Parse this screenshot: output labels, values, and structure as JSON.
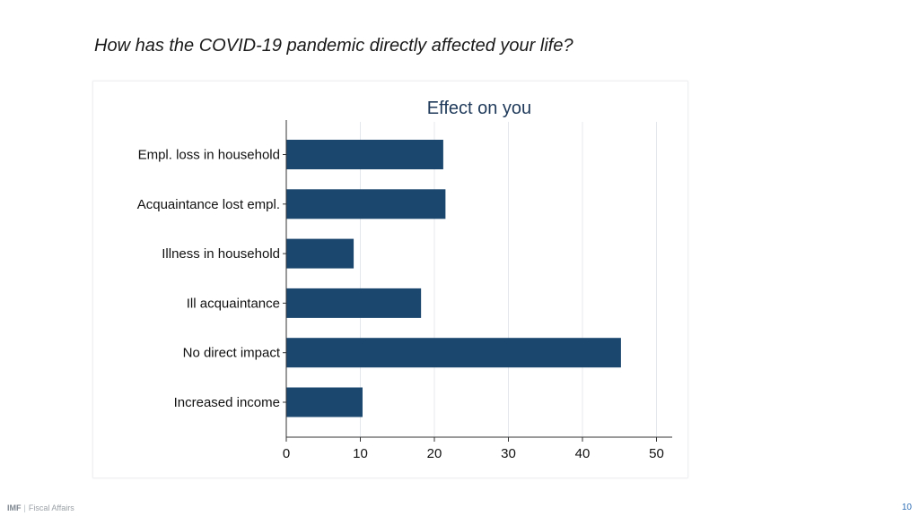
{
  "slide": {
    "title": "How has the COVID-19 pandemic directly affected your life?",
    "footer_brand": "IMF",
    "footer_separator": "|",
    "footer_dept": "Fiscal Affairs",
    "page_number": "10"
  },
  "chart_data": {
    "type": "bar",
    "orientation": "horizontal",
    "title": "Effect on you",
    "categories": [
      "Empl. loss in household",
      "Acquaintance lost empl.",
      "Illness in household",
      "Ill acquaintance",
      "No direct impact",
      "Increased income"
    ],
    "values": [
      21.2,
      21.5,
      9.1,
      18.2,
      45.2,
      10.3
    ],
    "xlim": [
      0,
      52
    ],
    "xticks": [
      0,
      10,
      20,
      30,
      40,
      50
    ],
    "xlabel": "",
    "ylabel": "",
    "grid": true,
    "bar_color": "#1b476f",
    "title_color": "#1f3a5a",
    "grid_color": "#e4e8ec"
  }
}
